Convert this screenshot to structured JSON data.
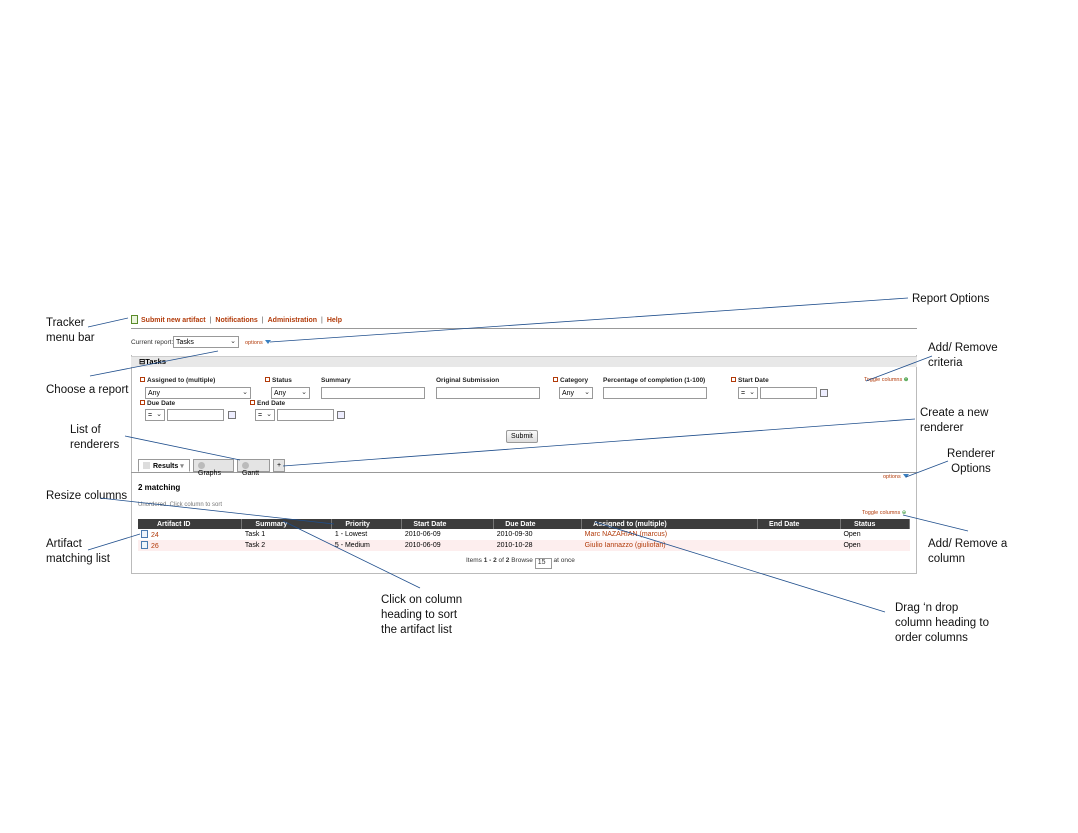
{
  "menu": {
    "items": [
      "Submit new artifact",
      "Notifications",
      "Administration",
      "Help"
    ]
  },
  "report": {
    "current_label": "Current report:",
    "selected": "Tasks",
    "options_label": "options"
  },
  "criteria": {
    "section_title": "Tasks",
    "toggle_columns": "Toggle columns",
    "assigned_label": "Assigned to (multiple)",
    "assigned_value": "Any",
    "status_label": "Status",
    "status_value": "Any",
    "summary_label": "Summary",
    "original_submission_label": "Original Submission",
    "category_label": "Category",
    "category_value": "Any",
    "percentage_label": "Percentage of completion (1-100)",
    "start_date_label": "Start Date",
    "start_date_op": "=",
    "due_date_label": "Due Date",
    "due_date_op": "=",
    "end_date_label": "End Date",
    "end_date_op": "=",
    "submit_label": "Submit"
  },
  "renderers": {
    "tabs": [
      "Results",
      "Graphs",
      "Gantt"
    ],
    "add_label": "+",
    "options_label": "options"
  },
  "results": {
    "matching": "2 matching",
    "sort_hint": "Unordered. Click column to sort",
    "toggle_columns": "Toggle columns",
    "columns": [
      "Artifact ID",
      "Summary",
      "Priority",
      "Start Date",
      "Due Date",
      "Assigned to (multiple)",
      "End Date",
      "Status"
    ],
    "rows": [
      [
        "24",
        "Task 1",
        "1 - Lowest",
        "2010-06-09",
        "2010-09-30",
        "Marc NAZARIAN (marcus)",
        "",
        "Open"
      ],
      [
        "26",
        "Task 2",
        "5 - Medium",
        "2010-06-09",
        "2010-10-28",
        "Giulio Iannazzo (giuliofan)",
        "",
        "Open"
      ]
    ],
    "pager_prefix": "Items",
    "pager_range": "1 - 2",
    "pager_of": "of",
    "pager_total": "2",
    "pager_browse": "Browse",
    "pager_size": "15",
    "pager_suffix": "at once"
  },
  "callouts": {
    "tracker_menu_bar": "Tracker menu bar",
    "choose_report": "Choose a report",
    "list_renderers": "List of renderers",
    "resize_columns": "Resize columns",
    "artifact_list": "Artifact matching list",
    "report_options": "Report Options",
    "add_remove_criteria": "Add/ Remove criteria",
    "create_renderer": "Create a new renderer",
    "renderer_options": "Renderer Options",
    "add_remove_column": "Add/ Remove a column",
    "click_column": "Click on column heading to sort the artifact list",
    "drag_drop": "Drag ‘n drop column heading to order columns"
  }
}
